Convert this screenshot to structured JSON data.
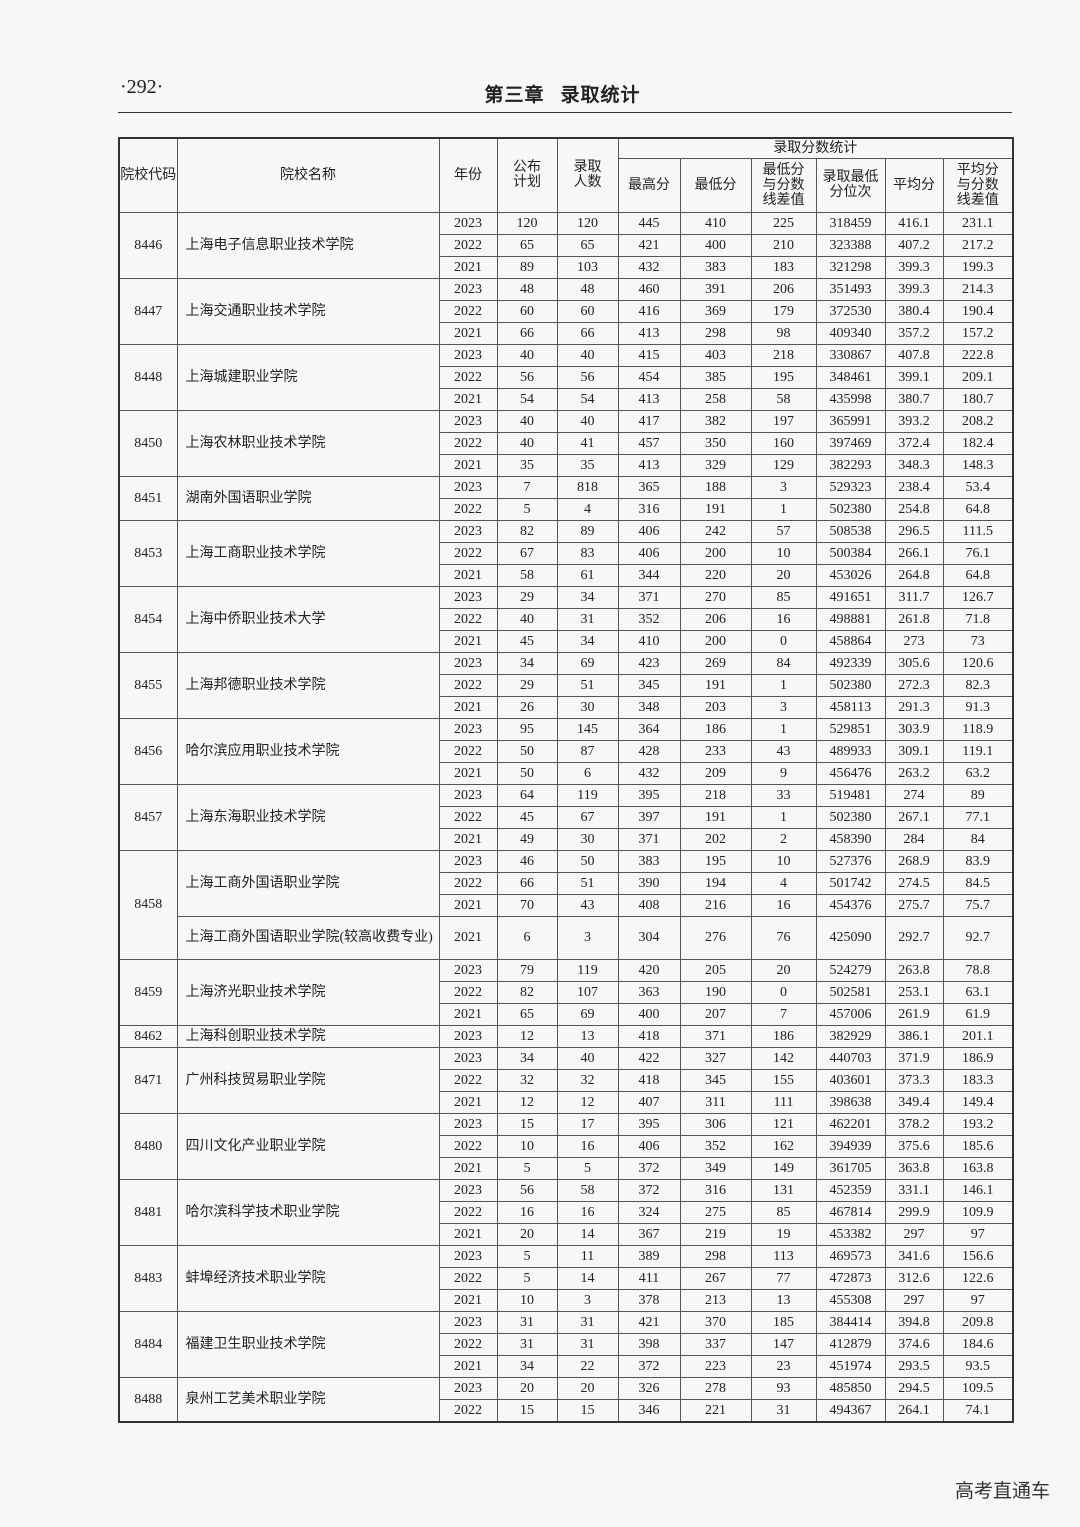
{
  "header": {
    "page_number": "·292·",
    "chapter": "第三章",
    "chapter_title": "录取统计"
  },
  "table": {
    "headers": {
      "code": "院校代码",
      "name": "院校名称",
      "year": "年份",
      "plan": "公布计划",
      "admitted": "录取人数",
      "group": "录取分数统计",
      "sub": [
        "最高分",
        "最低分",
        "最低分与分数线差值",
        "录取最低分位次",
        "平均分",
        "平均分与分数线差值"
      ]
    },
    "groups": [
      {
        "code": "8446",
        "schools": [
          {
            "name": "上海电子信息职业技术学院",
            "rows": [
              [
                "2023",
                "120",
                "120",
                "445",
                "410",
                "225",
                "318459",
                "416.1",
                "231.1"
              ],
              [
                "2022",
                "65",
                "65",
                "421",
                "400",
                "210",
                "323388",
                "407.2",
                "217.2"
              ],
              [
                "2021",
                "89",
                "103",
                "432",
                "383",
                "183",
                "321298",
                "399.3",
                "199.3"
              ]
            ]
          }
        ]
      },
      {
        "code": "8447",
        "schools": [
          {
            "name": "上海交通职业技术学院",
            "rows": [
              [
                "2023",
                "48",
                "48",
                "460",
                "391",
                "206",
                "351493",
                "399.3",
                "214.3"
              ],
              [
                "2022",
                "60",
                "60",
                "416",
                "369",
                "179",
                "372530",
                "380.4",
                "190.4"
              ],
              [
                "2021",
                "66",
                "66",
                "413",
                "298",
                "98",
                "409340",
                "357.2",
                "157.2"
              ]
            ]
          }
        ]
      },
      {
        "code": "8448",
        "schools": [
          {
            "name": "上海城建职业学院",
            "rows": [
              [
                "2023",
                "40",
                "40",
                "415",
                "403",
                "218",
                "330867",
                "407.8",
                "222.8"
              ],
              [
                "2022",
                "56",
                "56",
                "454",
                "385",
                "195",
                "348461",
                "399.1",
                "209.1"
              ],
              [
                "2021",
                "54",
                "54",
                "413",
                "258",
                "58",
                "435998",
                "380.7",
                "180.7"
              ]
            ]
          }
        ]
      },
      {
        "code": "8450",
        "schools": [
          {
            "name": "上海农林职业技术学院",
            "rows": [
              [
                "2023",
                "40",
                "40",
                "417",
                "382",
                "197",
                "365991",
                "393.2",
                "208.2"
              ],
              [
                "2022",
                "40",
                "41",
                "457",
                "350",
                "160",
                "397469",
                "372.4",
                "182.4"
              ],
              [
                "2021",
                "35",
                "35",
                "413",
                "329",
                "129",
                "382293",
                "348.3",
                "148.3"
              ]
            ]
          }
        ]
      },
      {
        "code": "8451",
        "schools": [
          {
            "name": "湖南外国语职业学院",
            "rows": [
              [
                "2023",
                "7",
                "818",
                "365",
                "188",
                "3",
                "529323",
                "238.4",
                "53.4"
              ],
              [
                "2022",
                "5",
                "4",
                "316",
                "191",
                "1",
                "502380",
                "254.8",
                "64.8"
              ]
            ]
          }
        ]
      },
      {
        "code": "8453",
        "schools": [
          {
            "name": "上海工商职业技术学院",
            "rows": [
              [
                "2023",
                "82",
                "89",
                "406",
                "242",
                "57",
                "508538",
                "296.5",
                "111.5"
              ],
              [
                "2022",
                "67",
                "83",
                "406",
                "200",
                "10",
                "500384",
                "266.1",
                "76.1"
              ],
              [
                "2021",
                "58",
                "61",
                "344",
                "220",
                "20",
                "453026",
                "264.8",
                "64.8"
              ]
            ]
          }
        ]
      },
      {
        "code": "8454",
        "schools": [
          {
            "name": "上海中侨职业技术大学",
            "rows": [
              [
                "2023",
                "29",
                "34",
                "371",
                "270",
                "85",
                "491651",
                "311.7",
                "126.7"
              ],
              [
                "2022",
                "40",
                "31",
                "352",
                "206",
                "16",
                "498881",
                "261.8",
                "71.8"
              ],
              [
                "2021",
                "45",
                "34",
                "410",
                "200",
                "0",
                "458864",
                "273",
                "73"
              ]
            ]
          }
        ]
      },
      {
        "code": "8455",
        "schools": [
          {
            "name": "上海邦德职业技术学院",
            "rows": [
              [
                "2023",
                "34",
                "69",
                "423",
                "269",
                "84",
                "492339",
                "305.6",
                "120.6"
              ],
              [
                "2022",
                "29",
                "51",
                "345",
                "191",
                "1",
                "502380",
                "272.3",
                "82.3"
              ],
              [
                "2021",
                "26",
                "30",
                "348",
                "203",
                "3",
                "458113",
                "291.3",
                "91.3"
              ]
            ]
          }
        ]
      },
      {
        "code": "8456",
        "schools": [
          {
            "name": "哈尔滨应用职业技术学院",
            "rows": [
              [
                "2023",
                "95",
                "145",
                "364",
                "186",
                "1",
                "529851",
                "303.9",
                "118.9"
              ],
              [
                "2022",
                "50",
                "87",
                "428",
                "233",
                "43",
                "489933",
                "309.1",
                "119.1"
              ],
              [
                "2021",
                "50",
                "6",
                "432",
                "209",
                "9",
                "456476",
                "263.2",
                "63.2"
              ]
            ]
          }
        ]
      },
      {
        "code": "8457",
        "schools": [
          {
            "name": "上海东海职业技术学院",
            "rows": [
              [
                "2023",
                "64",
                "119",
                "395",
                "218",
                "33",
                "519481",
                "274",
                "89"
              ],
              [
                "2022",
                "45",
                "67",
                "397",
                "191",
                "1",
                "502380",
                "267.1",
                "77.1"
              ],
              [
                "2021",
                "49",
                "30",
                "371",
                "202",
                "2",
                "458390",
                "284",
                "84"
              ]
            ]
          }
        ]
      },
      {
        "code": "8458",
        "schools": [
          {
            "name": "上海工商外国语职业学院",
            "rows": [
              [
                "2023",
                "46",
                "50",
                "383",
                "195",
                "10",
                "527376",
                "268.9",
                "83.9"
              ],
              [
                "2022",
                "66",
                "51",
                "390",
                "194",
                "4",
                "501742",
                "274.5",
                "84.5"
              ],
              [
                "2021",
                "70",
                "43",
                "408",
                "216",
                "16",
                "454376",
                "275.7",
                "75.7"
              ]
            ]
          },
          {
            "name": "上海工商外国语职业学院(较高收费专业)",
            "rows": [
              [
                "2021",
                "6",
                "3",
                "304",
                "276",
                "76",
                "425090",
                "292.7",
                "92.7"
              ]
            ]
          }
        ]
      },
      {
        "code": "8459",
        "schools": [
          {
            "name": "上海济光职业技术学院",
            "rows": [
              [
                "2023",
                "79",
                "119",
                "420",
                "205",
                "20",
                "524279",
                "263.8",
                "78.8"
              ],
              [
                "2022",
                "82",
                "107",
                "363",
                "190",
                "0",
                "502581",
                "253.1",
                "63.1"
              ],
              [
                "2021",
                "65",
                "69",
                "400",
                "207",
                "7",
                "457006",
                "261.9",
                "61.9"
              ]
            ]
          }
        ]
      },
      {
        "code": "8462",
        "schools": [
          {
            "name": "上海科创职业技术学院",
            "rows": [
              [
                "2023",
                "12",
                "13",
                "418",
                "371",
                "186",
                "382929",
                "386.1",
                "201.1"
              ]
            ]
          }
        ]
      },
      {
        "code": "8471",
        "schools": [
          {
            "name": "广州科技贸易职业学院",
            "rows": [
              [
                "2023",
                "34",
                "40",
                "422",
                "327",
                "142",
                "440703",
                "371.9",
                "186.9"
              ],
              [
                "2022",
                "32",
                "32",
                "418",
                "345",
                "155",
                "403601",
                "373.3",
                "183.3"
              ],
              [
                "2021",
                "12",
                "12",
                "407",
                "311",
                "111",
                "398638",
                "349.4",
                "149.4"
              ]
            ]
          }
        ]
      },
      {
        "code": "8480",
        "schools": [
          {
            "name": "四川文化产业职业学院",
            "rows": [
              [
                "2023",
                "15",
                "17",
                "395",
                "306",
                "121",
                "462201",
                "378.2",
                "193.2"
              ],
              [
                "2022",
                "10",
                "16",
                "406",
                "352",
                "162",
                "394939",
                "375.6",
                "185.6"
              ],
              [
                "2021",
                "5",
                "5",
                "372",
                "349",
                "149",
                "361705",
                "363.8",
                "163.8"
              ]
            ]
          }
        ]
      },
      {
        "code": "8481",
        "schools": [
          {
            "name": "哈尔滨科学技术职业学院",
            "rows": [
              [
                "2023",
                "56",
                "58",
                "372",
                "316",
                "131",
                "452359",
                "331.1",
                "146.1"
              ],
              [
                "2022",
                "16",
                "16",
                "324",
                "275",
                "85",
                "467814",
                "299.9",
                "109.9"
              ],
              [
                "2021",
                "20",
                "14",
                "367",
                "219",
                "19",
                "453382",
                "297",
                "97"
              ]
            ]
          }
        ]
      },
      {
        "code": "8483",
        "schools": [
          {
            "name": "蚌埠经济技术职业学院",
            "rows": [
              [
                "2023",
                "5",
                "11",
                "389",
                "298",
                "113",
                "469573",
                "341.6",
                "156.6"
              ],
              [
                "2022",
                "5",
                "14",
                "411",
                "267",
                "77",
                "472873",
                "312.6",
                "122.6"
              ],
              [
                "2021",
                "10",
                "3",
                "378",
                "213",
                "13",
                "455308",
                "297",
                "97"
              ]
            ]
          }
        ]
      },
      {
        "code": "8484",
        "schools": [
          {
            "name": "福建卫生职业技术学院",
            "rows": [
              [
                "2023",
                "31",
                "31",
                "421",
                "370",
                "185",
                "384414",
                "394.8",
                "209.8"
              ],
              [
                "2022",
                "31",
                "31",
                "398",
                "337",
                "147",
                "412879",
                "374.6",
                "184.6"
              ],
              [
                "2021",
                "34",
                "22",
                "372",
                "223",
                "23",
                "451974",
                "293.5",
                "93.5"
              ]
            ]
          }
        ]
      },
      {
        "code": "8488",
        "schools": [
          {
            "name": "泉州工艺美术职业学院",
            "rows": [
              [
                "2023",
                "20",
                "20",
                "326",
                "278",
                "93",
                "485850",
                "294.5",
                "109.5"
              ],
              [
                "2022",
                "15",
                "15",
                "346",
                "221",
                "31",
                "494367",
                "264.1",
                "74.1"
              ]
            ]
          }
        ]
      }
    ]
  },
  "footer": {
    "watermark_text": "高考直通车"
  }
}
